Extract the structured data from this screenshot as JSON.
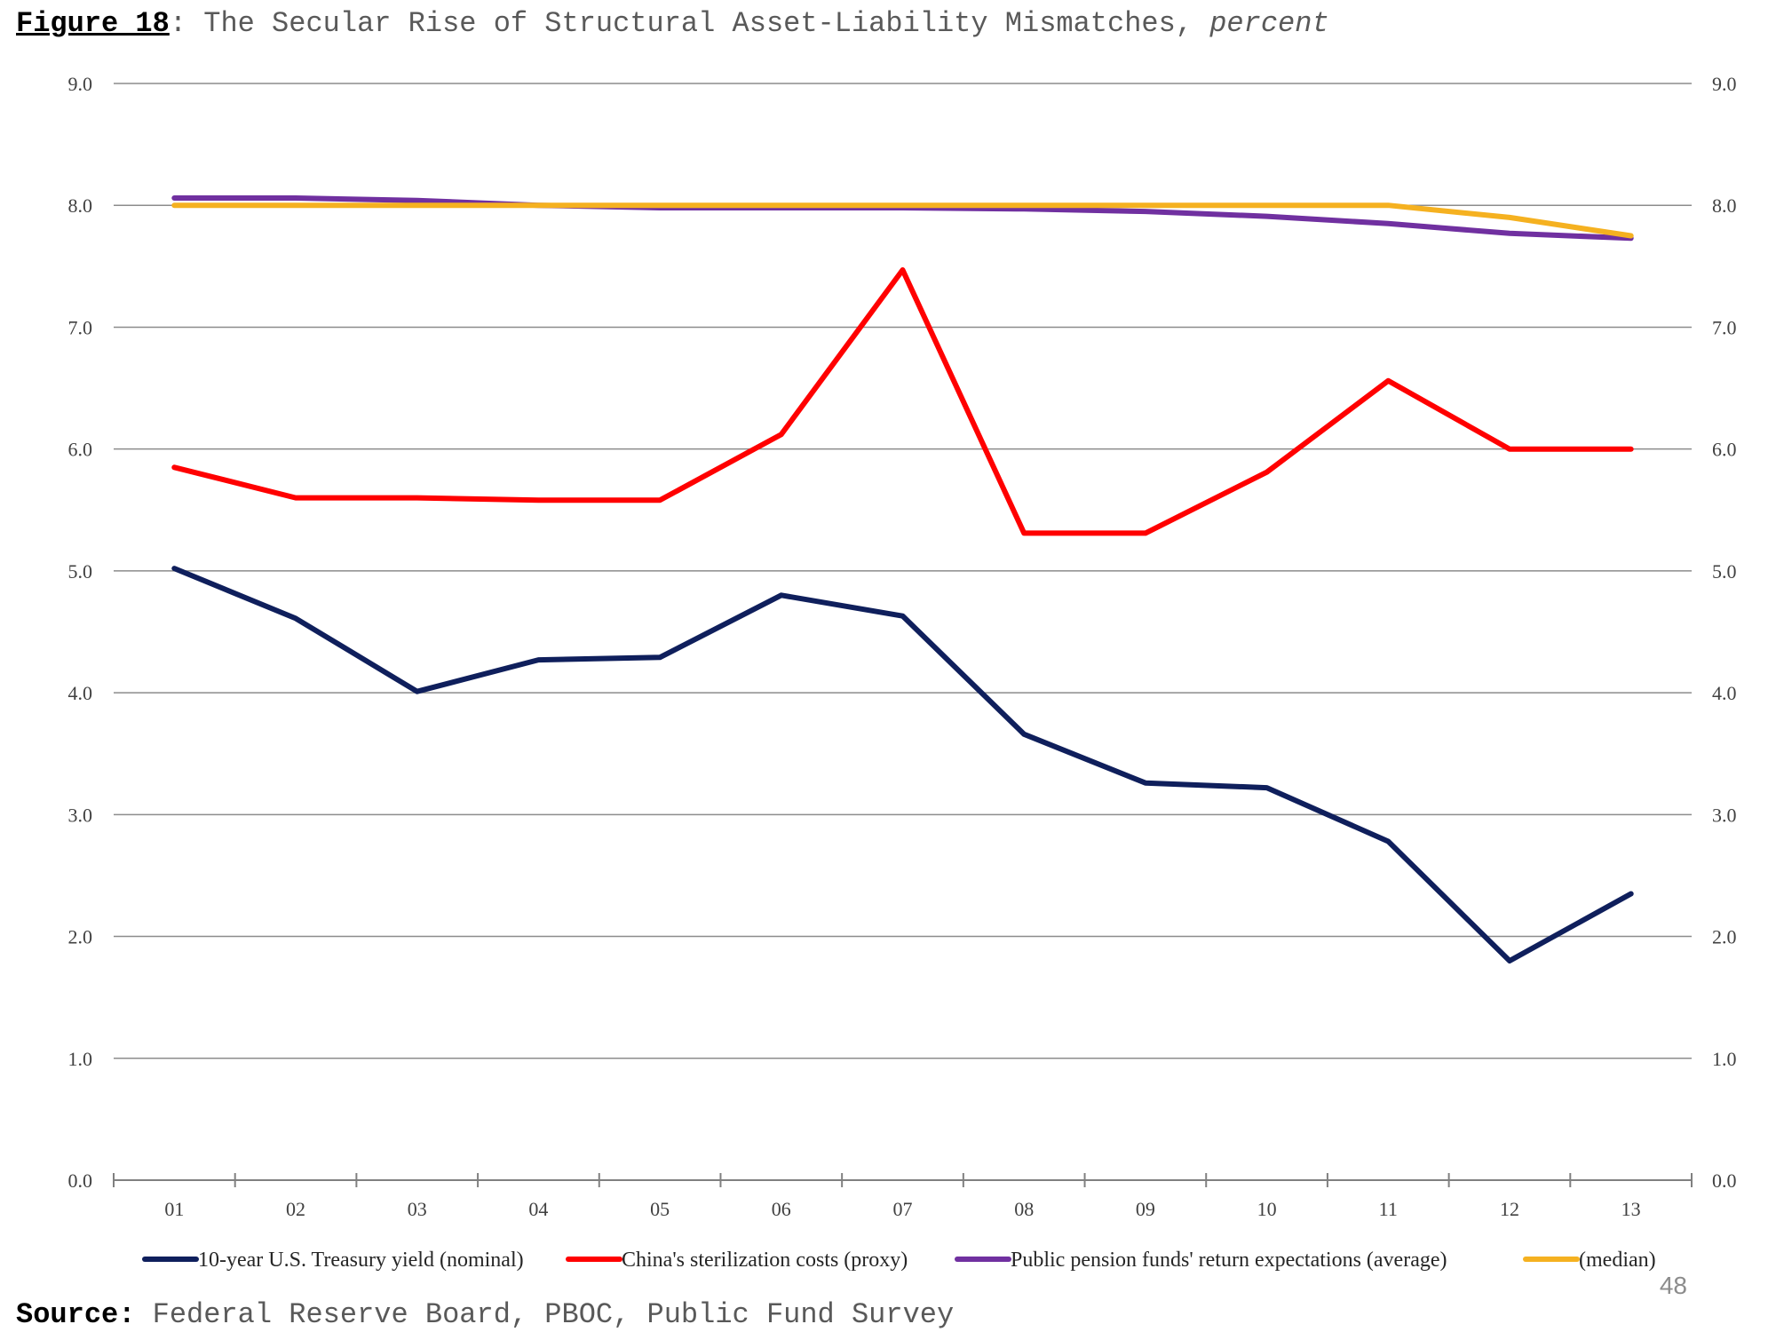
{
  "header": {
    "figure_label": "Figure 18",
    "title_text": ": The Secular Rise of Structural Asset-Liability Mismatches, ",
    "unit": "percent"
  },
  "footer": {
    "source_label": "Source:",
    "source_text": " Federal Reserve Board, PBOC, Public Fund Survey",
    "page_number": "48"
  },
  "chart_data": {
    "type": "line",
    "title": "The Secular Rise of Structural Asset-Liability Mismatches",
    "xlabel": "",
    "ylabel": "",
    "ylim": [
      0,
      9
    ],
    "y_ticks": [
      "0.0",
      "1.0",
      "2.0",
      "3.0",
      "4.0",
      "5.0",
      "6.0",
      "7.0",
      "8.0",
      "9.0"
    ],
    "categories": [
      "01",
      "02",
      "03",
      "04",
      "05",
      "06",
      "07",
      "08",
      "09",
      "10",
      "11",
      "12",
      "13"
    ],
    "grid": true,
    "legend_position": "bottom",
    "series": [
      {
        "name": "10-year U.S. Treasury yield (nominal)",
        "color": "#0f1f5c",
        "values": [
          5.02,
          4.61,
          4.01,
          4.27,
          4.29,
          4.8,
          4.63,
          3.66,
          3.26,
          3.22,
          2.78,
          1.8,
          2.35
        ]
      },
      {
        "name": "China's sterilization costs (proxy)",
        "color": "#ff0000",
        "values": [
          5.85,
          5.6,
          5.6,
          5.58,
          5.58,
          6.12,
          7.47,
          5.31,
          5.31,
          5.81,
          6.56,
          6.0,
          6.0
        ]
      },
      {
        "name": "Public pension funds' return expectations (average)",
        "color": "#7030a0",
        "values": [
          8.06,
          8.06,
          8.04,
          8.0,
          7.98,
          7.98,
          7.98,
          7.97,
          7.95,
          7.91,
          7.85,
          7.77,
          7.73
        ]
      },
      {
        "name": "(median)",
        "color": "#f5b120",
        "values": [
          8.0,
          8.0,
          8.0,
          8.0,
          8.0,
          8.0,
          8.0,
          8.0,
          8.0,
          8.0,
          8.0,
          7.9,
          7.75
        ]
      }
    ]
  }
}
